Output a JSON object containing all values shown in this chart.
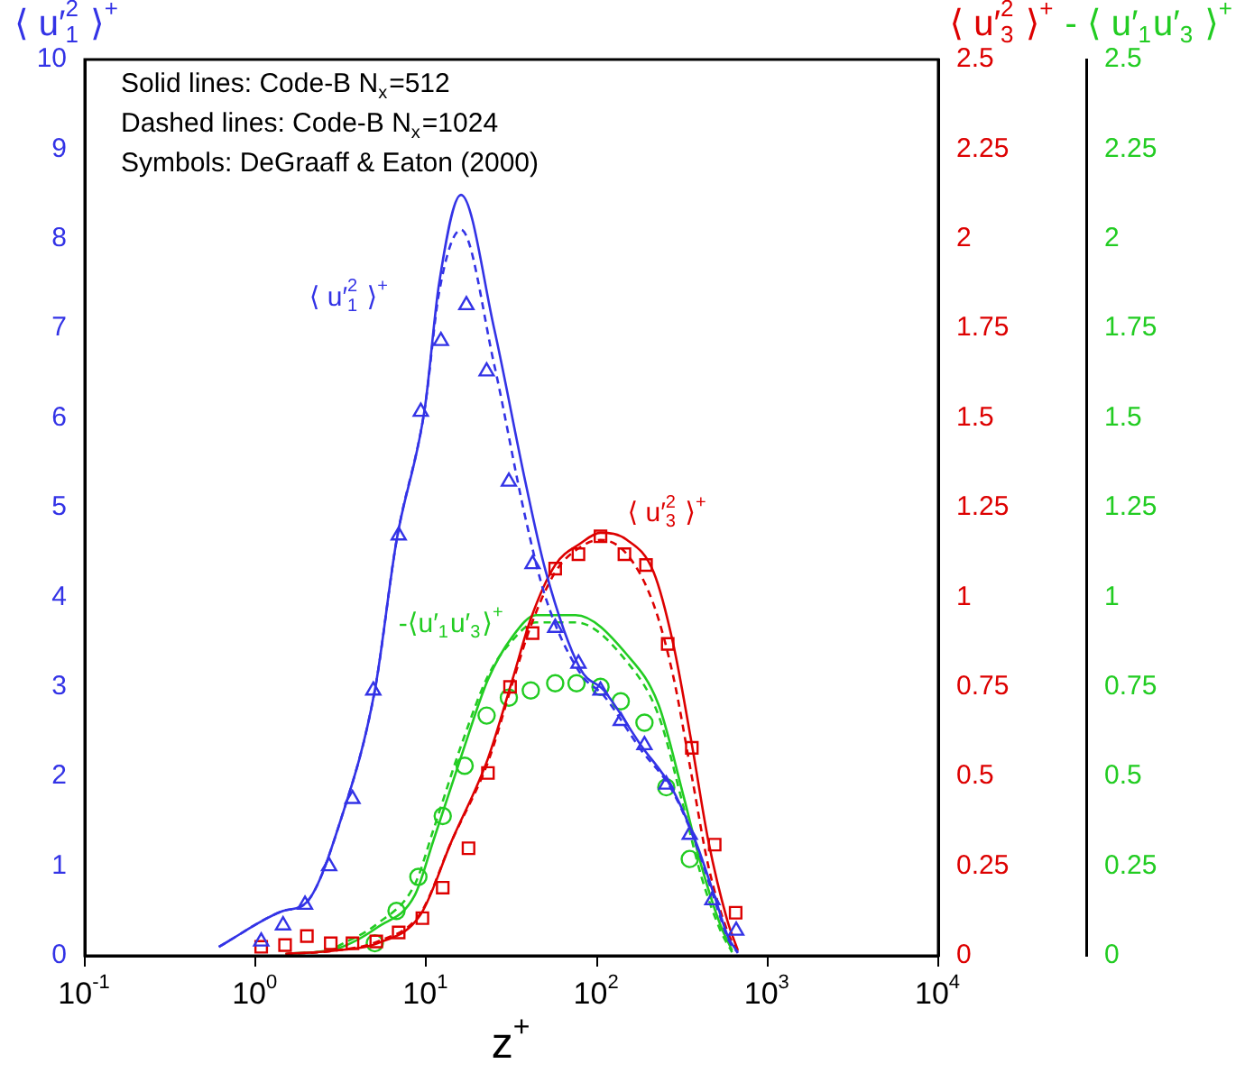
{
  "chart_data": {
    "type": "line",
    "ylabel": "⟨ u′$^{2}$$_{1}$ ⟩$^{+}$",
    "y2label": "⟨ u′$^{2}$$_{3}$ ⟩$^{+}$",
    "y3label": " - ⟨ u′$_{1}$u′$_{3}$ ⟩$^{+}$",
    "xlabel": "z$^{+}$",
    "log": "x",
    "grid": false,
    "legend": false,
    "xlim": [
      0.1,
      10000
    ],
    "xticks": [
      {
        "value": 0.1,
        "label": "10$^{-1}$"
      },
      {
        "value": 1,
        "label": "10$^{0}$"
      },
      {
        "value": 10,
        "label": "10$^{1}$"
      },
      {
        "value": 100,
        "label": "10$^{2}$"
      },
      {
        "value": 1000,
        "label": "10$^{3}$"
      },
      {
        "value": 10000,
        "label": "10$^{4}$"
      }
    ],
    "ylim": [
      0,
      10
    ],
    "yticks": [
      0,
      1,
      2,
      3,
      4,
      5,
      6,
      7,
      8,
      9,
      10
    ],
    "y2lim": [
      0,
      2.5
    ],
    "y2ticks": [
      0,
      0.25,
      0.5,
      0.75,
      1,
      1.25,
      1.5,
      1.75,
      2,
      2.25,
      2.5
    ],
    "y3lim": [
      0,
      2.5
    ],
    "y3ticks": [
      0,
      0.25,
      0.5,
      0.75,
      1,
      1.25,
      1.5,
      1.75,
      2,
      2.25,
      2.5
    ],
    "annotations": [
      "Solid lines: Code-B N$_{x}$=512",
      "Dashed lines: Code-B N$_{x}$=1024",
      "Symbols: DeGraaff & Eaton (2000)",
      "⟨ u′$^{2}$$_{1}$ ⟩$^{+}$",
      "⟨ u′$^{2}$$_{3}$ ⟩$^{+}$",
      "-⟨u′$_{1}$u′$_{3}$⟩$^{+}$"
    ],
    "series": [
      {
        "type": "line",
        "color": "#3333e6",
        "line_style": "solid",
        "marker": "none",
        "axis": "y",
        "x": [
          0.61,
          1.45,
          2.0,
          3.2,
          5.0,
          6.7,
          9.8,
          11.9,
          16,
          25,
          38,
          50,
          80,
          110,
          181,
          275,
          380,
          490,
          590,
          670
        ],
        "values": [
          0.1,
          0.5,
          0.6,
          1.55,
          2.96,
          4.63,
          6.1,
          7.5,
          8.49,
          7.0,
          5.3,
          4.3,
          3.2,
          2.96,
          2.35,
          1.87,
          1.27,
          0.66,
          0.2,
          0.04
        ]
      },
      {
        "type": "line",
        "color": "#3333e6",
        "line_style": "dashed",
        "marker": "none",
        "axis": "y",
        "x": [
          0.61,
          1.45,
          2.0,
          3.2,
          5.0,
          6.7,
          9.8,
          11.9,
          16,
          25,
          38,
          50,
          80,
          110,
          181,
          275,
          380,
          490,
          590,
          670
        ],
        "values": [
          0.1,
          0.5,
          0.6,
          1.55,
          2.96,
          4.63,
          6.1,
          7.4,
          8.1,
          6.6,
          4.9,
          4.0,
          3.15,
          2.9,
          2.3,
          1.85,
          1.25,
          0.62,
          0.18,
          0.03
        ]
      },
      {
        "type": "scatter",
        "color": "#3333e6",
        "marker": "triangle",
        "axis": "y",
        "x": [
          1.08,
          1.45,
          1.95,
          2.7,
          3.7,
          4.9,
          6.9,
          9.3,
          12.2,
          17.2,
          22.6,
          30.5,
          42,
          57,
          78,
          105,
          138,
          190,
          255,
          350,
          475,
          655
        ],
        "values": [
          0.16,
          0.34,
          0.57,
          1.0,
          1.75,
          2.96,
          4.69,
          6.07,
          6.86,
          7.26,
          6.52,
          5.29,
          4.37,
          3.66,
          3.26,
          2.96,
          2.62,
          2.35,
          1.91,
          1.35,
          0.62,
          0.28
        ]
      },
      {
        "type": "line",
        "color": "#dd0000",
        "line_style": "solid",
        "marker": "none",
        "axis": "y2",
        "x": [
          1.5,
          3,
          5.2,
          9.3,
          14.1,
          23,
          32,
          41,
          57,
          80,
          105,
          150,
          215,
          280,
          360,
          450,
          580,
          670
        ],
        "values": [
          0.005,
          0.015,
          0.035,
          0.116,
          0.32,
          0.55,
          0.77,
          0.94,
          1.09,
          1.15,
          1.18,
          1.16,
          1.07,
          0.87,
          0.59,
          0.32,
          0.1,
          0.015
        ]
      },
      {
        "type": "line",
        "color": "#dd0000",
        "line_style": "dashed",
        "marker": "none",
        "axis": "y2",
        "x": [
          1.5,
          3,
          5.2,
          9.3,
          14.1,
          23,
          32,
          41,
          57,
          80,
          105,
          150,
          215,
          280,
          360,
          450,
          580,
          670
        ],
        "values": [
          0.005,
          0.015,
          0.04,
          0.12,
          0.32,
          0.54,
          0.76,
          0.92,
          1.07,
          1.14,
          1.16,
          1.12,
          0.98,
          0.78,
          0.5,
          0.25,
          0.07,
          0.01
        ]
      },
      {
        "type": "scatter",
        "color": "#dd0000",
        "marker": "square",
        "axis": "y2",
        "x": [
          1.08,
          1.49,
          2.0,
          2.76,
          3.7,
          5.1,
          6.9,
          9.5,
          12.5,
          17.7,
          23,
          31,
          42,
          57,
          78,
          105,
          145,
          194,
          260,
          360,
          490,
          650
        ],
        "values": [
          0.025,
          0.03,
          0.055,
          0.035,
          0.035,
          0.04,
          0.065,
          0.105,
          0.19,
          0.3,
          0.51,
          0.75,
          0.9,
          1.08,
          1.12,
          1.17,
          1.12,
          1.09,
          0.87,
          0.58,
          0.31,
          0.12
        ]
      },
      {
        "type": "line",
        "color": "#22cc22",
        "line_style": "solid",
        "marker": "none",
        "axis": "y3",
        "x": [
          1.5,
          3,
          5.2,
          8.6,
          11,
          16.4,
          23,
          32,
          44,
          75,
          150,
          230,
          320,
          410,
          530,
          620
        ],
        "values": [
          0.005,
          0.02,
          0.08,
          0.17,
          0.32,
          0.57,
          0.77,
          0.89,
          0.95,
          0.95,
          0.84,
          0.7,
          0.45,
          0.25,
          0.085,
          0.015
        ]
      },
      {
        "type": "line",
        "color": "#22cc22",
        "line_style": "dashed",
        "marker": "none",
        "axis": "y3",
        "x": [
          3,
          5.2,
          8.6,
          11,
          16.4,
          23,
          32,
          44,
          75,
          150,
          230,
          320,
          410,
          530,
          620
        ],
        "values": [
          0.025,
          0.09,
          0.2,
          0.35,
          0.6,
          0.78,
          0.88,
          0.93,
          0.93,
          0.82,
          0.67,
          0.42,
          0.22,
          0.07,
          0.01
        ]
      },
      {
        "type": "scatter",
        "color": "#22cc22",
        "marker": "circle",
        "axis": "y3",
        "x": [
          5.0,
          6.7,
          9.0,
          12.5,
          16.8,
          22.6,
          30.5,
          41,
          57,
          76,
          105,
          138,
          190,
          255,
          350
        ],
        "values": [
          0.035,
          0.125,
          0.22,
          0.39,
          0.53,
          0.67,
          0.72,
          0.74,
          0.76,
          0.76,
          0.75,
          0.71,
          0.65,
          0.47,
          0.27
        ]
      }
    ]
  }
}
